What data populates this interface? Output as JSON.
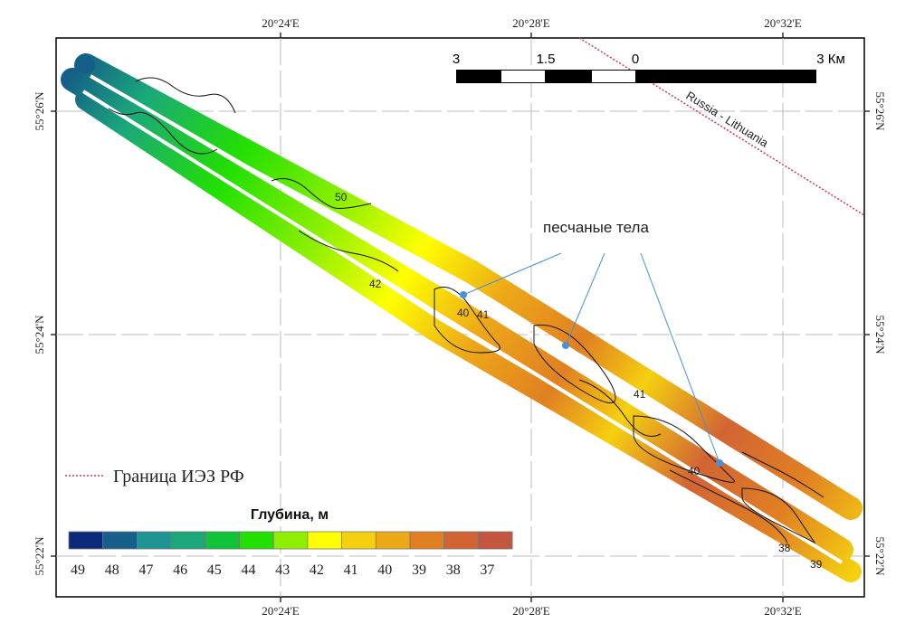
{
  "axes": {
    "lon_labels": [
      "20°24'E",
      "20°28'E",
      "20°32'E"
    ],
    "lat_labels": [
      "55°26'N",
      "55°24'N",
      "55°22'N"
    ]
  },
  "scale_bar": {
    "labels": [
      "3",
      "1.5",
      "0",
      "3 Км"
    ]
  },
  "border": {
    "label": "Russia - Lithuania",
    "color": "#d6335a"
  },
  "annotation": {
    "label": "песчаные тела",
    "line_color": "#4a90d9"
  },
  "legend": {
    "eez_label": "Граница ИЭЗ РФ",
    "depth_title": "Глубина, м",
    "classes": [
      {
        "value": "49",
        "color": "#0d2a7a"
      },
      {
        "value": "48",
        "color": "#165f88"
      },
      {
        "value": "47",
        "color": "#1f9494"
      },
      {
        "value": "46",
        "color": "#1aa87a"
      },
      {
        "value": "45",
        "color": "#10c43a"
      },
      {
        "value": "44",
        "color": "#22e000"
      },
      {
        "value": "43",
        "color": "#8ef000"
      },
      {
        "value": "42",
        "color": "#ffff00"
      },
      {
        "value": "41",
        "color": "#f5d010"
      },
      {
        "value": "40",
        "color": "#eda818"
      },
      {
        "value": "39",
        "color": "#e08022"
      },
      {
        "value": "38",
        "color": "#d26434"
      },
      {
        "value": "37",
        "color": "#c4553e"
      }
    ]
  },
  "contour_labels": [
    "50",
    "42",
    "40",
    "41",
    "41",
    "40",
    "38",
    "39"
  ]
}
